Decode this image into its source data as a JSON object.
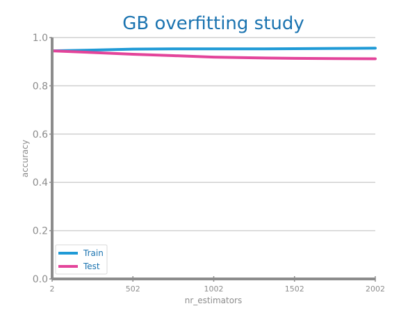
{
  "chart_data": {
    "type": "line",
    "title": "GB overfitting study",
    "xlabel": "nr_estimators",
    "ylabel": "accuracy",
    "x": [
      2,
      252,
      502,
      752,
      1002,
      1252,
      1502,
      1752,
      2002
    ],
    "xticks": [
      2,
      502,
      1002,
      1502,
      2002
    ],
    "yticks": [
      0.0,
      0.2,
      0.4,
      0.6,
      0.8,
      1.0
    ],
    "ylim": [
      0.0,
      1.0
    ],
    "xlim": [
      2,
      2002
    ],
    "grid": "horizontal",
    "legend_position": "lower-left",
    "series": [
      {
        "name": "Train",
        "color": "#1f9ad6",
        "values": [
          0.945,
          0.948,
          0.952,
          0.953,
          0.953,
          0.953,
          0.954,
          0.955,
          0.956
        ]
      },
      {
        "name": "Test",
        "color": "#e3449a",
        "values": [
          0.945,
          0.938,
          0.931,
          0.925,
          0.919,
          0.916,
          0.914,
          0.913,
          0.912
        ]
      }
    ],
    "colors": {
      "title": "#1a73b0",
      "axis": "#8c8c8c",
      "grid": "#d0d0d0",
      "legend_text": "#1a73b0"
    }
  }
}
